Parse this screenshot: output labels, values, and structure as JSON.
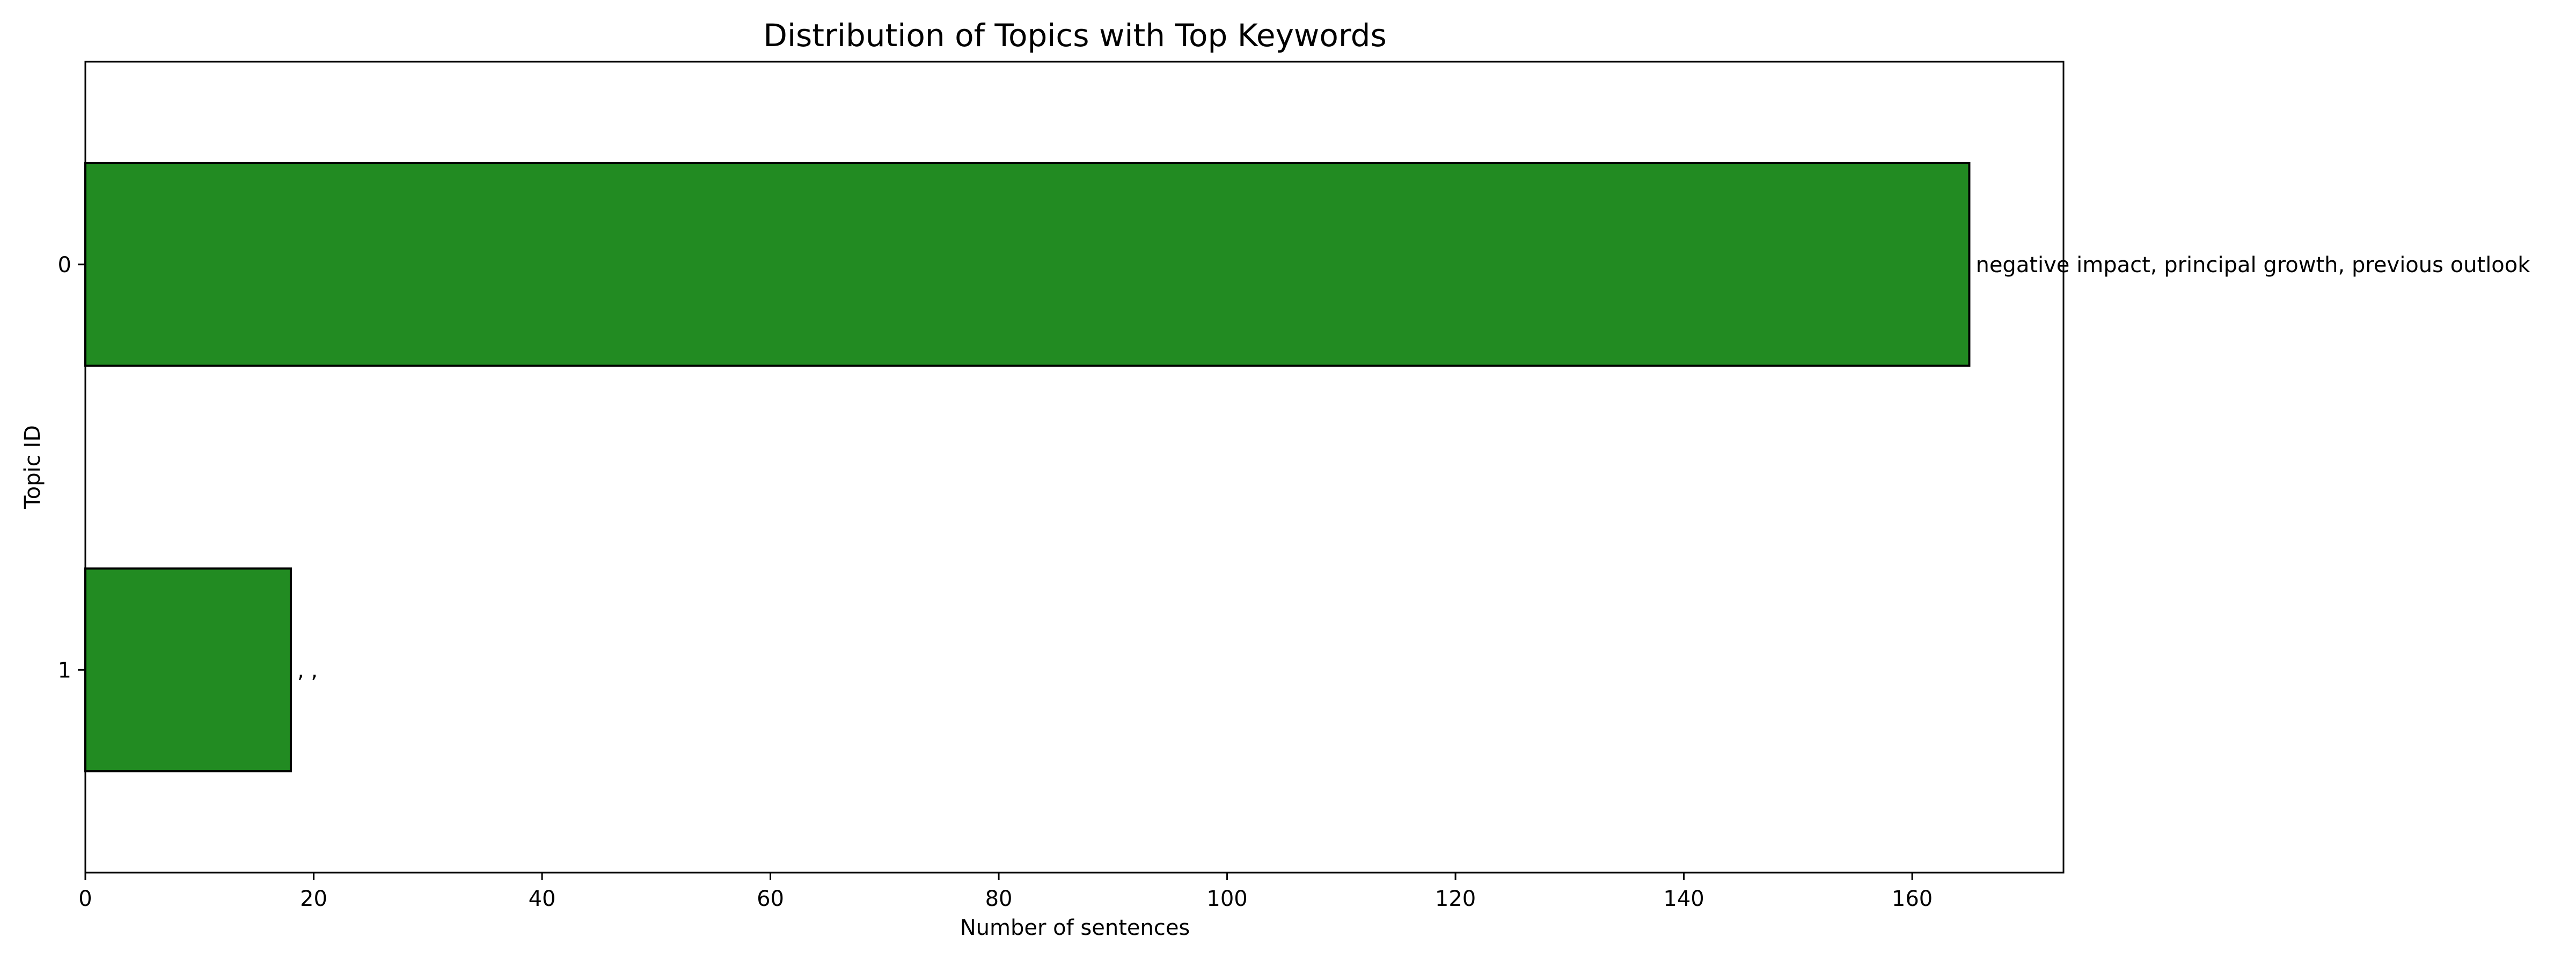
{
  "chart_data": {
    "type": "bar",
    "orientation": "horizontal",
    "title": "Distribution of Topics with Top Keywords",
    "xlabel": "Number of sentences",
    "ylabel": "Topic ID",
    "categories": [
      "0",
      "1"
    ],
    "values": [
      165,
      18
    ],
    "bar_labels": [
      "negative impact, principal growth, previous outlook",
      ", ,"
    ],
    "xlim": [
      0,
      173.25
    ],
    "xticks": [
      0,
      20,
      40,
      60,
      80,
      100,
      120,
      140,
      160
    ],
    "bar_color": "#228b22",
    "edge_color": "#000000",
    "grid": false,
    "legend": "none"
  }
}
